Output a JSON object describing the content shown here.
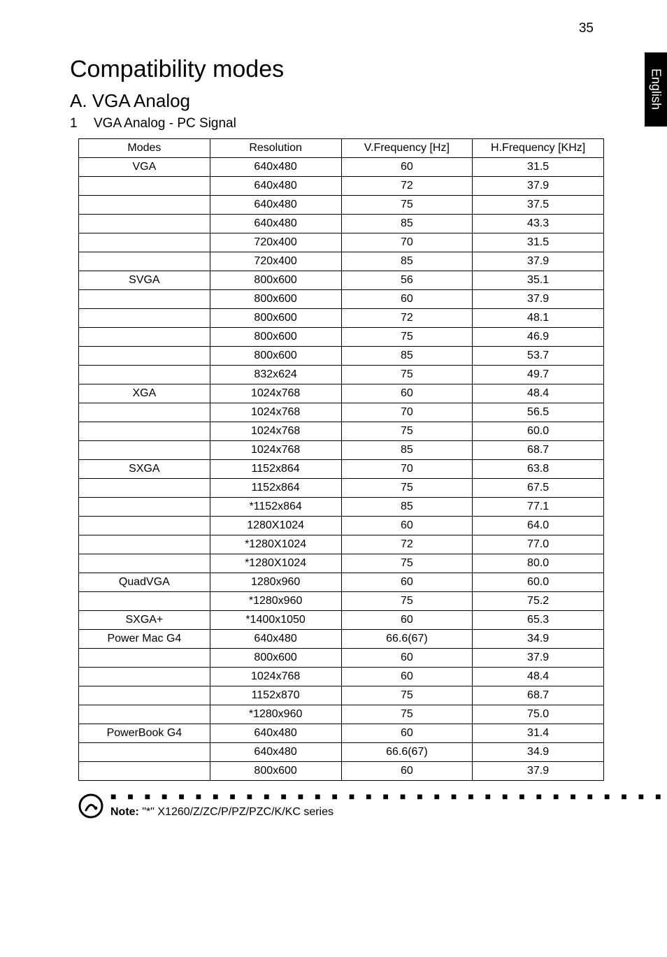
{
  "page_number": "35",
  "side_tab": "English",
  "title": "Compatibility modes",
  "subtitle": "A. VGA Analog",
  "list_number": "1",
  "list_label": "VGA Analog - PC Signal",
  "table": {
    "headers": [
      "Modes",
      "Resolution",
      "V.Frequency [Hz]",
      "H.Frequency [KHz]"
    ],
    "rows": [
      [
        "VGA",
        "640x480",
        "60",
        "31.5"
      ],
      [
        "",
        "640x480",
        "72",
        "37.9"
      ],
      [
        "",
        "640x480",
        "75",
        "37.5"
      ],
      [
        "",
        "640x480",
        "85",
        "43.3"
      ],
      [
        "",
        "720x400",
        "70",
        "31.5"
      ],
      [
        "",
        "720x400",
        "85",
        "37.9"
      ],
      [
        "SVGA",
        "800x600",
        "56",
        "35.1"
      ],
      [
        "",
        "800x600",
        "60",
        "37.9"
      ],
      [
        "",
        "800x600",
        "72",
        "48.1"
      ],
      [
        "",
        "800x600",
        "75",
        "46.9"
      ],
      [
        "",
        "800x600",
        "85",
        "53.7"
      ],
      [
        "",
        "832x624",
        "75",
        "49.7"
      ],
      [
        "XGA",
        "1024x768",
        "60",
        "48.4"
      ],
      [
        "",
        "1024x768",
        "70",
        "56.5"
      ],
      [
        "",
        "1024x768",
        "75",
        "60.0"
      ],
      [
        "",
        "1024x768",
        "85",
        "68.7"
      ],
      [
        "SXGA",
        "1152x864",
        "70",
        "63.8"
      ],
      [
        "",
        "1152x864",
        "75",
        "67.5"
      ],
      [
        "",
        "*1152x864",
        "85",
        "77.1"
      ],
      [
        "",
        "1280X1024",
        "60",
        "64.0"
      ],
      [
        "",
        "*1280X1024",
        "72",
        "77.0"
      ],
      [
        "",
        "*1280X1024",
        "75",
        "80.0"
      ],
      [
        "QuadVGA",
        "1280x960",
        "60",
        "60.0"
      ],
      [
        "",
        "*1280x960",
        "75",
        "75.2"
      ],
      [
        "SXGA+",
        "*1400x1050",
        "60",
        "65.3"
      ],
      [
        "Power Mac G4",
        "640x480",
        "66.6(67)",
        "34.9"
      ],
      [
        "",
        "800x600",
        "60",
        "37.9"
      ],
      [
        "",
        "1024x768",
        "60",
        "48.4"
      ],
      [
        "",
        "1152x870",
        "75",
        "68.7"
      ],
      [
        "",
        "*1280x960",
        "75",
        "75.0"
      ],
      [
        "PowerBook G4",
        "640x480",
        "60",
        "31.4"
      ],
      [
        "",
        "640x480",
        "66.6(67)",
        "34.9"
      ],
      [
        "",
        "800x600",
        "60",
        "37.9"
      ]
    ]
  },
  "note_label": "Note:",
  "note_text": " \"*\" X1260/Z/ZC/P/PZ/PZC/K/KC series"
}
